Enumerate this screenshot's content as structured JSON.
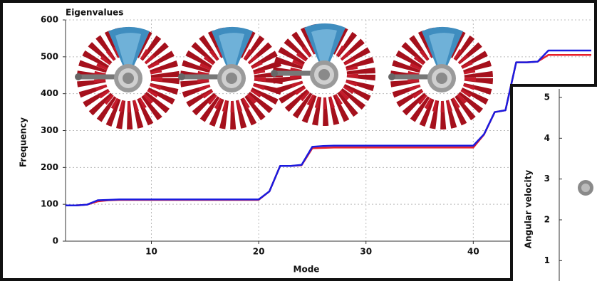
{
  "chart_data": [
    {
      "type": "line",
      "title": "Eigenvalues",
      "xlabel": "Mode",
      "ylabel": "Frequency",
      "x": [
        2,
        3,
        4,
        5,
        6,
        7,
        8,
        9,
        10,
        11,
        12,
        13,
        14,
        15,
        16,
        17,
        18,
        19,
        20,
        21,
        22,
        23,
        24,
        25,
        26,
        27,
        28,
        29,
        30,
        31,
        32,
        33,
        34,
        35,
        36,
        37,
        38,
        39,
        40,
        41,
        42,
        43,
        44,
        45,
        46,
        47,
        48,
        49,
        50,
        51
      ],
      "series": [
        {
          "color": "#e8202a",
          "values": [
            97,
            97,
            99,
            108,
            111,
            112,
            112,
            112,
            112,
            112,
            112,
            112,
            112,
            112,
            112,
            112,
            112,
            112,
            112,
            135,
            204,
            204,
            206,
            252,
            253,
            254,
            254,
            254,
            254,
            254,
            254,
            254,
            254,
            254,
            254,
            254,
            254,
            254,
            254,
            289,
            350,
            355,
            485,
            485,
            487,
            505,
            505,
            505,
            505,
            505
          ]
        },
        {
          "color": "#1a1adf",
          "values": [
            97,
            97,
            99,
            111,
            112,
            113,
            113,
            113,
            113,
            113,
            113,
            113,
            113,
            113,
            113,
            113,
            113,
            113,
            113,
            135,
            204,
            204,
            207,
            256,
            258,
            259,
            259,
            259,
            259,
            259,
            259,
            259,
            259,
            259,
            259,
            259,
            259,
            259,
            259,
            290,
            350,
            355,
            485,
            485,
            487,
            517,
            517,
            517,
            517,
            517
          ]
        }
      ],
      "xlim": [
        2,
        51
      ],
      "xticks": [
        10,
        20,
        30,
        40
      ],
      "ylim": [
        0,
        600
      ],
      "yticks": [
        0,
        100,
        200,
        300,
        400,
        500,
        600
      ],
      "grid": true
    },
    {
      "type": "line",
      "ylabel": "Angular velocity",
      "ylim": [
        0.5,
        5
      ],
      "yticks": [
        1,
        2,
        3,
        4,
        5
      ]
    }
  ]
}
